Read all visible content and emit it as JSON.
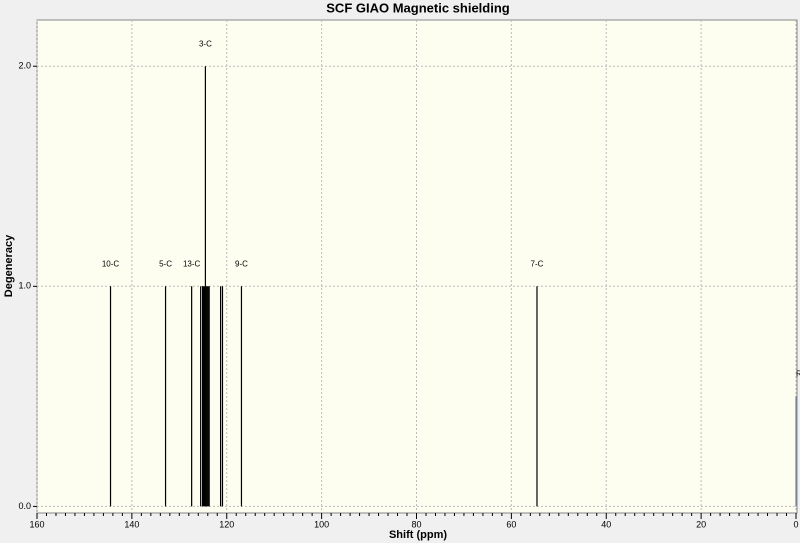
{
  "chart_data": {
    "type": "stick",
    "title": "SCF GIAO Magnetic shielding",
    "xlabel": "Shift (ppm)",
    "ylabel": "Degeneracy",
    "x": [
      144.5,
      132.9,
      127.4,
      125.5,
      125.1,
      124.9,
      124.7,
      124.5,
      124.3,
      124.1,
      123.9,
      123.7,
      121.3,
      120.9,
      116.9,
      54.6,
      0
    ],
    "values": [
      1,
      1,
      1,
      1,
      1,
      1,
      1,
      2,
      1,
      1,
      1,
      1,
      1,
      1,
      1,
      1,
      0.5
    ],
    "labels": [
      "10-C",
      "5-C",
      "13-C",
      null,
      null,
      null,
      null,
      "3-C",
      null,
      null,
      null,
      null,
      null,
      null,
      "9-C",
      "7-C",
      "Re"
    ],
    "color": "#000000",
    "reference_color": "#7080a0",
    "xlim": [
      160,
      0
    ],
    "ylim": [
      -0.03,
      2.21
    ],
    "xticks": [
      160,
      140,
      120,
      100,
      80,
      60,
      40,
      20,
      0
    ],
    "yticks": [
      {
        "value": 0,
        "label": "0.0"
      },
      {
        "value": 1,
        "label": "1.0"
      },
      {
        "value": 2,
        "label": "2.0"
      }
    ],
    "grid": true
  }
}
